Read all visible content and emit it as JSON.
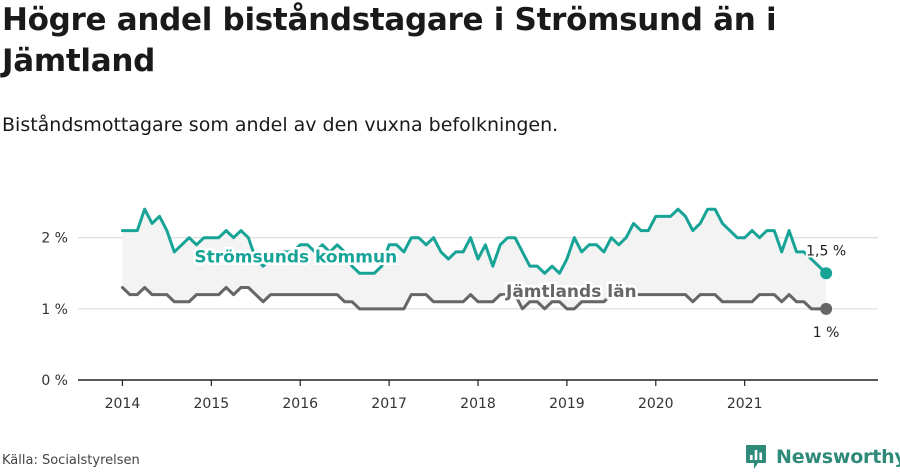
{
  "title": "Högre andel biståndstagare i Strömsund än i Jämtland",
  "subtitle": "Biståndsmottagare som andel av den vuxna befolkningen.",
  "source": "Källa: Socialstyrelsen",
  "brand": {
    "name": "Newsworthy",
    "icon": "newsworthy-logo-icon"
  },
  "colors": {
    "stromsund": "#17a497",
    "jamtland": "#666666",
    "band": "#f3f3f3",
    "grid": "#d6d6d6",
    "axis": "#222222"
  },
  "chart_data": {
    "type": "line",
    "title": "Högre andel biståndstagare i Strömsund än i Jämtland",
    "subtitle": "Biståndsmottagare som andel av den vuxna befolkningen.",
    "x_start": "2014-01",
    "x_frequency": "monthly",
    "xlim": [
      "2013-07",
      "2022-07"
    ],
    "x_ticks": [
      "2014",
      "2015",
      "2016",
      "2017",
      "2018",
      "2019",
      "2020",
      "2021"
    ],
    "y_ticks": [
      0,
      1,
      2
    ],
    "y_tick_labels": [
      "0 %",
      "1 %",
      "2 %"
    ],
    "ylim": [
      0,
      2.6
    ],
    "grid": "horizontal",
    "series": [
      {
        "name": "Strömsunds kommun",
        "end_label": "1,5 %",
        "values": [
          2.1,
          2.1,
          2.1,
          2.4,
          2.2,
          2.3,
          2.1,
          1.8,
          1.9,
          2.0,
          1.9,
          2.0,
          2.0,
          2.0,
          2.1,
          2.0,
          2.1,
          2.0,
          1.7,
          1.6,
          1.7,
          1.8,
          1.8,
          1.8,
          1.9,
          1.9,
          1.8,
          1.9,
          1.8,
          1.9,
          1.8,
          1.6,
          1.5,
          1.5,
          1.5,
          1.6,
          1.9,
          1.9,
          1.8,
          2.0,
          2.0,
          1.9,
          2.0,
          1.8,
          1.7,
          1.8,
          1.8,
          2.0,
          1.7,
          1.9,
          1.6,
          1.9,
          2.0,
          2.0,
          1.8,
          1.6,
          1.6,
          1.5,
          1.6,
          1.5,
          1.7,
          2.0,
          1.8,
          1.9,
          1.9,
          1.8,
          2.0,
          1.9,
          2.0,
          2.2,
          2.1,
          2.1,
          2.3,
          2.3,
          2.3,
          2.4,
          2.3,
          2.1,
          2.2,
          2.4,
          2.4,
          2.2,
          2.1,
          2.0,
          2.0,
          2.1,
          2.0,
          2.1,
          2.1,
          1.8,
          2.1,
          1.8,
          1.8,
          1.7,
          1.6,
          1.5
        ]
      },
      {
        "name": "Jämtlands län",
        "end_label": "1 %",
        "values": [
          1.3,
          1.2,
          1.2,
          1.3,
          1.2,
          1.2,
          1.2,
          1.1,
          1.1,
          1.1,
          1.2,
          1.2,
          1.2,
          1.2,
          1.3,
          1.2,
          1.3,
          1.3,
          1.2,
          1.1,
          1.2,
          1.2,
          1.2,
          1.2,
          1.2,
          1.2,
          1.2,
          1.2,
          1.2,
          1.2,
          1.1,
          1.1,
          1.0,
          1.0,
          1.0,
          1.0,
          1.0,
          1.0,
          1.0,
          1.2,
          1.2,
          1.2,
          1.1,
          1.1,
          1.1,
          1.1,
          1.1,
          1.2,
          1.1,
          1.1,
          1.1,
          1.2,
          1.2,
          1.2,
          1.0,
          1.1,
          1.1,
          1.0,
          1.1,
          1.1,
          1.0,
          1.0,
          1.1,
          1.1,
          1.1,
          1.1,
          1.2,
          1.2,
          1.2,
          1.2,
          1.2,
          1.2,
          1.2,
          1.2,
          1.2,
          1.2,
          1.2,
          1.1,
          1.2,
          1.2,
          1.2,
          1.1,
          1.1,
          1.1,
          1.1,
          1.1,
          1.2,
          1.2,
          1.2,
          1.1,
          1.2,
          1.1,
          1.1,
          1.0,
          1.0,
          1.0
        ]
      }
    ]
  }
}
